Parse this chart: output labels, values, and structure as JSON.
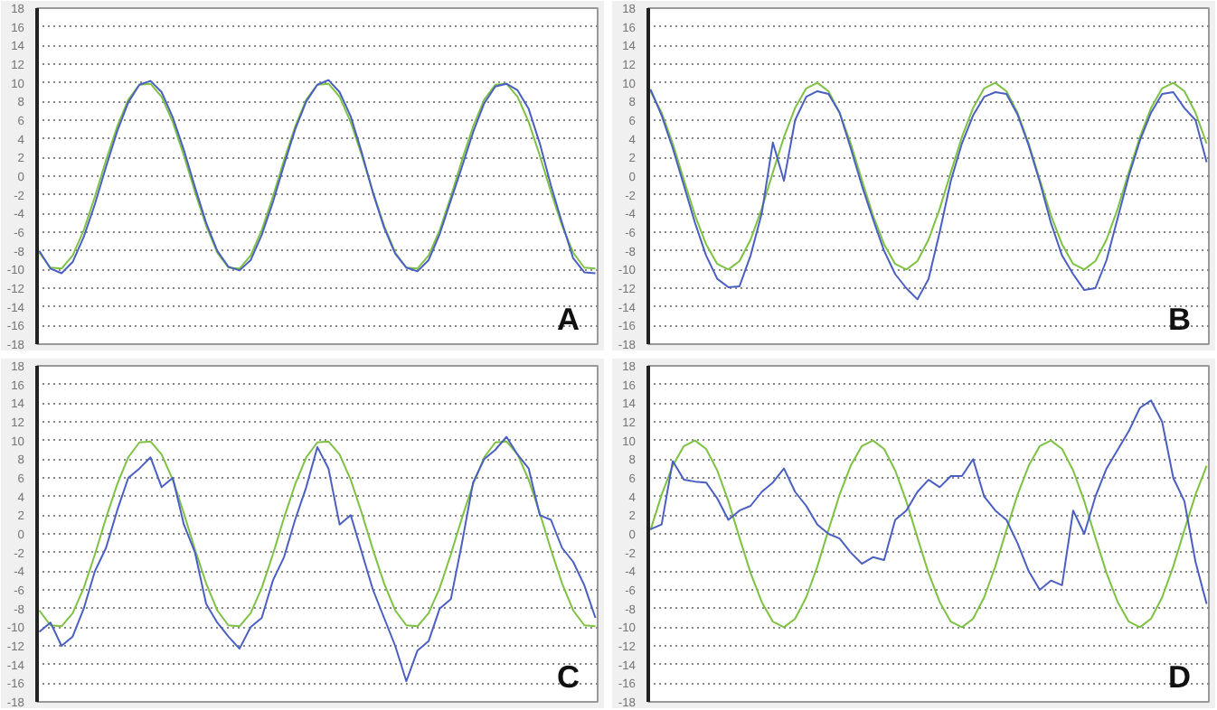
{
  "chart_data": [
    {
      "type": "line",
      "annotations": [
        "A"
      ],
      "categories": [
        null,
        null,
        null,
        null,
        null,
        null,
        null,
        null,
        null,
        null,
        null,
        null,
        null,
        null,
        null,
        null,
        null,
        null,
        null,
        null,
        null,
        null,
        null,
        null,
        null,
        null,
        null,
        null,
        null,
        null,
        null,
        null,
        null,
        null,
        null,
        null,
        null,
        null,
        null,
        null,
        null,
        null,
        null,
        null,
        null,
        null,
        null,
        null,
        null,
        null,
        null
      ],
      "ylim": [
        -18,
        18
      ],
      "yticks": [
        -18,
        -16,
        -14,
        -12,
        -10,
        -8,
        -6,
        -4,
        -2,
        0,
        2,
        4,
        6,
        8,
        10,
        12,
        14,
        16,
        18
      ],
      "tick_labels": "y",
      "grid": "y",
      "line_style": "solid",
      "series": [
        {
          "color": "#7dc242",
          "values": [
            -8.2,
            -9.8,
            -9.9,
            -8.5,
            -5.8,
            -2.2,
            1.7,
            5.3,
            8.2,
            9.8,
            9.9,
            8.5,
            5.8,
            2.2,
            -1.7,
            -5.3,
            -8.2,
            -9.8,
            -9.9,
            -8.5,
            -5.8,
            -2.2,
            1.7,
            5.3,
            8.2,
            9.8,
            9.9,
            8.5,
            5.8,
            2.2,
            -1.7,
            -5.3,
            -8.2,
            -9.8,
            -9.9,
            -8.5,
            -5.8,
            -2.2,
            1.7,
            5.3,
            8.2,
            9.8,
            9.9,
            8.5,
            5.8,
            2.2,
            -1.7,
            -5.3,
            -8.2,
            -9.8,
            -9.9
          ]
        },
        {
          "color": "#4a5fc1",
          "values": [
            -8.0,
            -9.9,
            -10.4,
            -9.2,
            -6.5,
            -3.0,
            1.0,
            4.8,
            7.9,
            9.8,
            10.2,
            9.0,
            6.3,
            2.8,
            -1.2,
            -5.0,
            -8.0,
            -9.7,
            -10.1,
            -9.0,
            -6.3,
            -2.8,
            1.2,
            5.0,
            8.0,
            9.8,
            10.3,
            9.0,
            6.4,
            2.5,
            -1.8,
            -5.5,
            -8.3,
            -9.8,
            -10.2,
            -9.0,
            -6.2,
            -2.6,
            1.0,
            4.7,
            7.8,
            9.6,
            9.9,
            9.2,
            7.2,
            3.5,
            -1.0,
            -5.0,
            -8.8,
            -10.3,
            -10.4
          ]
        }
      ]
    },
    {
      "type": "line",
      "annotations": [
        "B"
      ],
      "categories": [
        null,
        null,
        null,
        null,
        null,
        null,
        null,
        null,
        null,
        null,
        null,
        null,
        null,
        null,
        null,
        null,
        null,
        null,
        null,
        null,
        null,
        null,
        null,
        null,
        null,
        null,
        null,
        null,
        null,
        null,
        null,
        null,
        null,
        null,
        null,
        null,
        null,
        null,
        null,
        null,
        null,
        null,
        null,
        null,
        null,
        null,
        null,
        null,
        null,
        null,
        null
      ],
      "ylim": [
        -18,
        18
      ],
      "yticks": [
        -18,
        -16,
        -14,
        -12,
        -10,
        -8,
        -6,
        -4,
        -2,
        0,
        2,
        4,
        6,
        8,
        10,
        12,
        14,
        16,
        18
      ],
      "tick_labels": "y",
      "grid": "y",
      "line_style": "solid",
      "series": [
        {
          "color": "#7dc242",
          "values": [
            9.1,
            6.8,
            3.5,
            -0.4,
            -4.2,
            -7.3,
            -9.4,
            -10.0,
            -9.1,
            -6.8,
            -3.5,
            0.4,
            4.2,
            7.3,
            9.4,
            10.0,
            9.1,
            6.8,
            3.5,
            -0.4,
            -4.2,
            -7.3,
            -9.4,
            -10.0,
            -9.1,
            -6.8,
            -3.5,
            0.4,
            4.2,
            7.3,
            9.4,
            10.0,
            9.1,
            6.8,
            3.5,
            -0.4,
            -4.2,
            -7.3,
            -9.4,
            -10.0,
            -9.1,
            -6.8,
            -3.5,
            0.4,
            4.2,
            7.3,
            9.4,
            10.0,
            9.1,
            6.8,
            3.5
          ]
        },
        {
          "color": "#4a5fc1",
          "values": [
            9.3,
            6.5,
            3.0,
            -1.0,
            -5.0,
            -8.5,
            -11.0,
            -11.9,
            -11.8,
            -8.5,
            -4.0,
            3.6,
            -0.5,
            6.0,
            8.5,
            9.1,
            8.8,
            6.8,
            3.0,
            -1.0,
            -4.6,
            -8.0,
            -10.5,
            -12.0,
            -13.2,
            -11.0,
            -6.0,
            -0.5,
            3.5,
            6.5,
            8.5,
            9.0,
            8.8,
            6.6,
            3.3,
            -0.6,
            -5.0,
            -8.5,
            -10.5,
            -12.2,
            -12.0,
            -9.0,
            -4.5,
            0.0,
            3.8,
            6.8,
            8.8,
            9.0,
            7.3,
            6.0,
            1.5
          ]
        }
      ]
    },
    {
      "type": "line",
      "annotations": [
        "C"
      ],
      "categories": [
        null,
        null,
        null,
        null,
        null,
        null,
        null,
        null,
        null,
        null,
        null,
        null,
        null,
        null,
        null,
        null,
        null,
        null,
        null,
        null,
        null,
        null,
        null,
        null,
        null,
        null,
        null,
        null,
        null,
        null,
        null,
        null,
        null,
        null,
        null,
        null,
        null,
        null,
        null,
        null,
        null,
        null,
        null,
        null,
        null,
        null,
        null,
        null,
        null,
        null,
        null
      ],
      "ylim": [
        -18,
        18
      ],
      "yticks": [
        -18,
        -16,
        -14,
        -12,
        -10,
        -8,
        -6,
        -4,
        -2,
        0,
        2,
        4,
        6,
        8,
        10,
        12,
        14,
        16,
        18
      ],
      "tick_labels": "y",
      "grid": "y",
      "line_style": "solid",
      "series": [
        {
          "color": "#7dc242",
          "values": [
            -8.2,
            -9.8,
            -9.9,
            -8.5,
            -5.8,
            -2.2,
            1.7,
            5.3,
            8.2,
            9.8,
            9.9,
            8.5,
            5.8,
            2.2,
            -1.7,
            -5.3,
            -8.2,
            -9.8,
            -9.9,
            -8.5,
            -5.8,
            -2.2,
            1.7,
            5.3,
            8.2,
            9.8,
            9.9,
            8.5,
            5.8,
            2.2,
            -1.7,
            -5.3,
            -8.2,
            -9.8,
            -9.9,
            -8.5,
            -5.8,
            -2.2,
            1.7,
            5.3,
            8.2,
            9.8,
            9.9,
            8.5,
            5.8,
            2.2,
            -1.7,
            -5.3,
            -8.2,
            -9.8,
            -9.9
          ]
        },
        {
          "color": "#4a5fc1",
          "values": [
            -10.5,
            -9.5,
            -12.0,
            -11.0,
            -8.0,
            -4.0,
            -1.5,
            2.5,
            6.0,
            7.0,
            8.2,
            5.0,
            6.0,
            1.0,
            -2.0,
            -7.5,
            -9.5,
            -11.0,
            -12.3,
            -10.0,
            -9.0,
            -5.0,
            -2.5,
            1.5,
            5.0,
            9.3,
            7.0,
            1.0,
            2.0,
            -2.0,
            -6.0,
            -9.0,
            -12.0,
            -15.8,
            -12.5,
            -11.5,
            -8.0,
            -7.0,
            -1.0,
            5.5,
            8.0,
            9.0,
            10.4,
            8.5,
            7.0,
            2.0,
            1.5,
            -1.5,
            -3.0,
            -5.5,
            -9.0
          ]
        }
      ]
    },
    {
      "type": "line",
      "annotations": [
        "D"
      ],
      "categories": [
        null,
        null,
        null,
        null,
        null,
        null,
        null,
        null,
        null,
        null,
        null,
        null,
        null,
        null,
        null,
        null,
        null,
        null,
        null,
        null,
        null,
        null,
        null,
        null,
        null,
        null,
        null,
        null,
        null,
        null,
        null,
        null,
        null,
        null,
        null,
        null,
        null,
        null,
        null,
        null,
        null,
        null,
        null,
        null,
        null,
        null,
        null,
        null,
        null,
        null,
        null
      ],
      "ylim": [
        -18,
        18
      ],
      "yticks": [
        -18,
        -16,
        -14,
        -12,
        -10,
        -8,
        -6,
        -4,
        -2,
        0,
        2,
        4,
        6,
        8,
        10,
        12,
        14,
        16,
        18
      ],
      "tick_labels": "y",
      "grid": "y",
      "line_style": "solid",
      "series": [
        {
          "color": "#7dc242",
          "values": [
            0.4,
            4.2,
            7.3,
            9.4,
            10.0,
            9.1,
            6.8,
            3.5,
            -0.4,
            -4.2,
            -7.3,
            -9.4,
            -10.0,
            -9.1,
            -6.8,
            -3.5,
            0.4,
            4.2,
            7.3,
            9.4,
            10.0,
            9.1,
            6.8,
            3.5,
            -0.4,
            -4.2,
            -7.3,
            -9.4,
            -10.0,
            -9.1,
            -6.8,
            -3.5,
            0.4,
            4.2,
            7.3,
            9.4,
            10.0,
            9.1,
            6.8,
            3.5,
            -0.4,
            -4.2,
            -7.3,
            -9.4,
            -10.0,
            -9.1,
            -6.8,
            -3.5,
            0.4,
            4.2,
            7.3
          ]
        },
        {
          "color": "#4a5fc1",
          "values": [
            0.5,
            1.0,
            7.8,
            5.8,
            5.6,
            5.5,
            3.8,
            1.5,
            2.5,
            3.0,
            4.5,
            5.5,
            7.0,
            4.5,
            3.0,
            1.0,
            0.0,
            -0.5,
            -2.0,
            -3.2,
            -2.5,
            -2.8,
            1.5,
            2.5,
            4.5,
            5.8,
            5.0,
            6.2,
            6.2,
            8.0,
            4.0,
            2.5,
            1.5,
            -1.0,
            -4.0,
            -6.0,
            -5.0,
            -5.5,
            2.5,
            0.0,
            4.0,
            7.0,
            9.0,
            11.0,
            13.5,
            14.3,
            12.0,
            6.0,
            3.5,
            -3.0,
            -7.5
          ]
        }
      ]
    }
  ]
}
